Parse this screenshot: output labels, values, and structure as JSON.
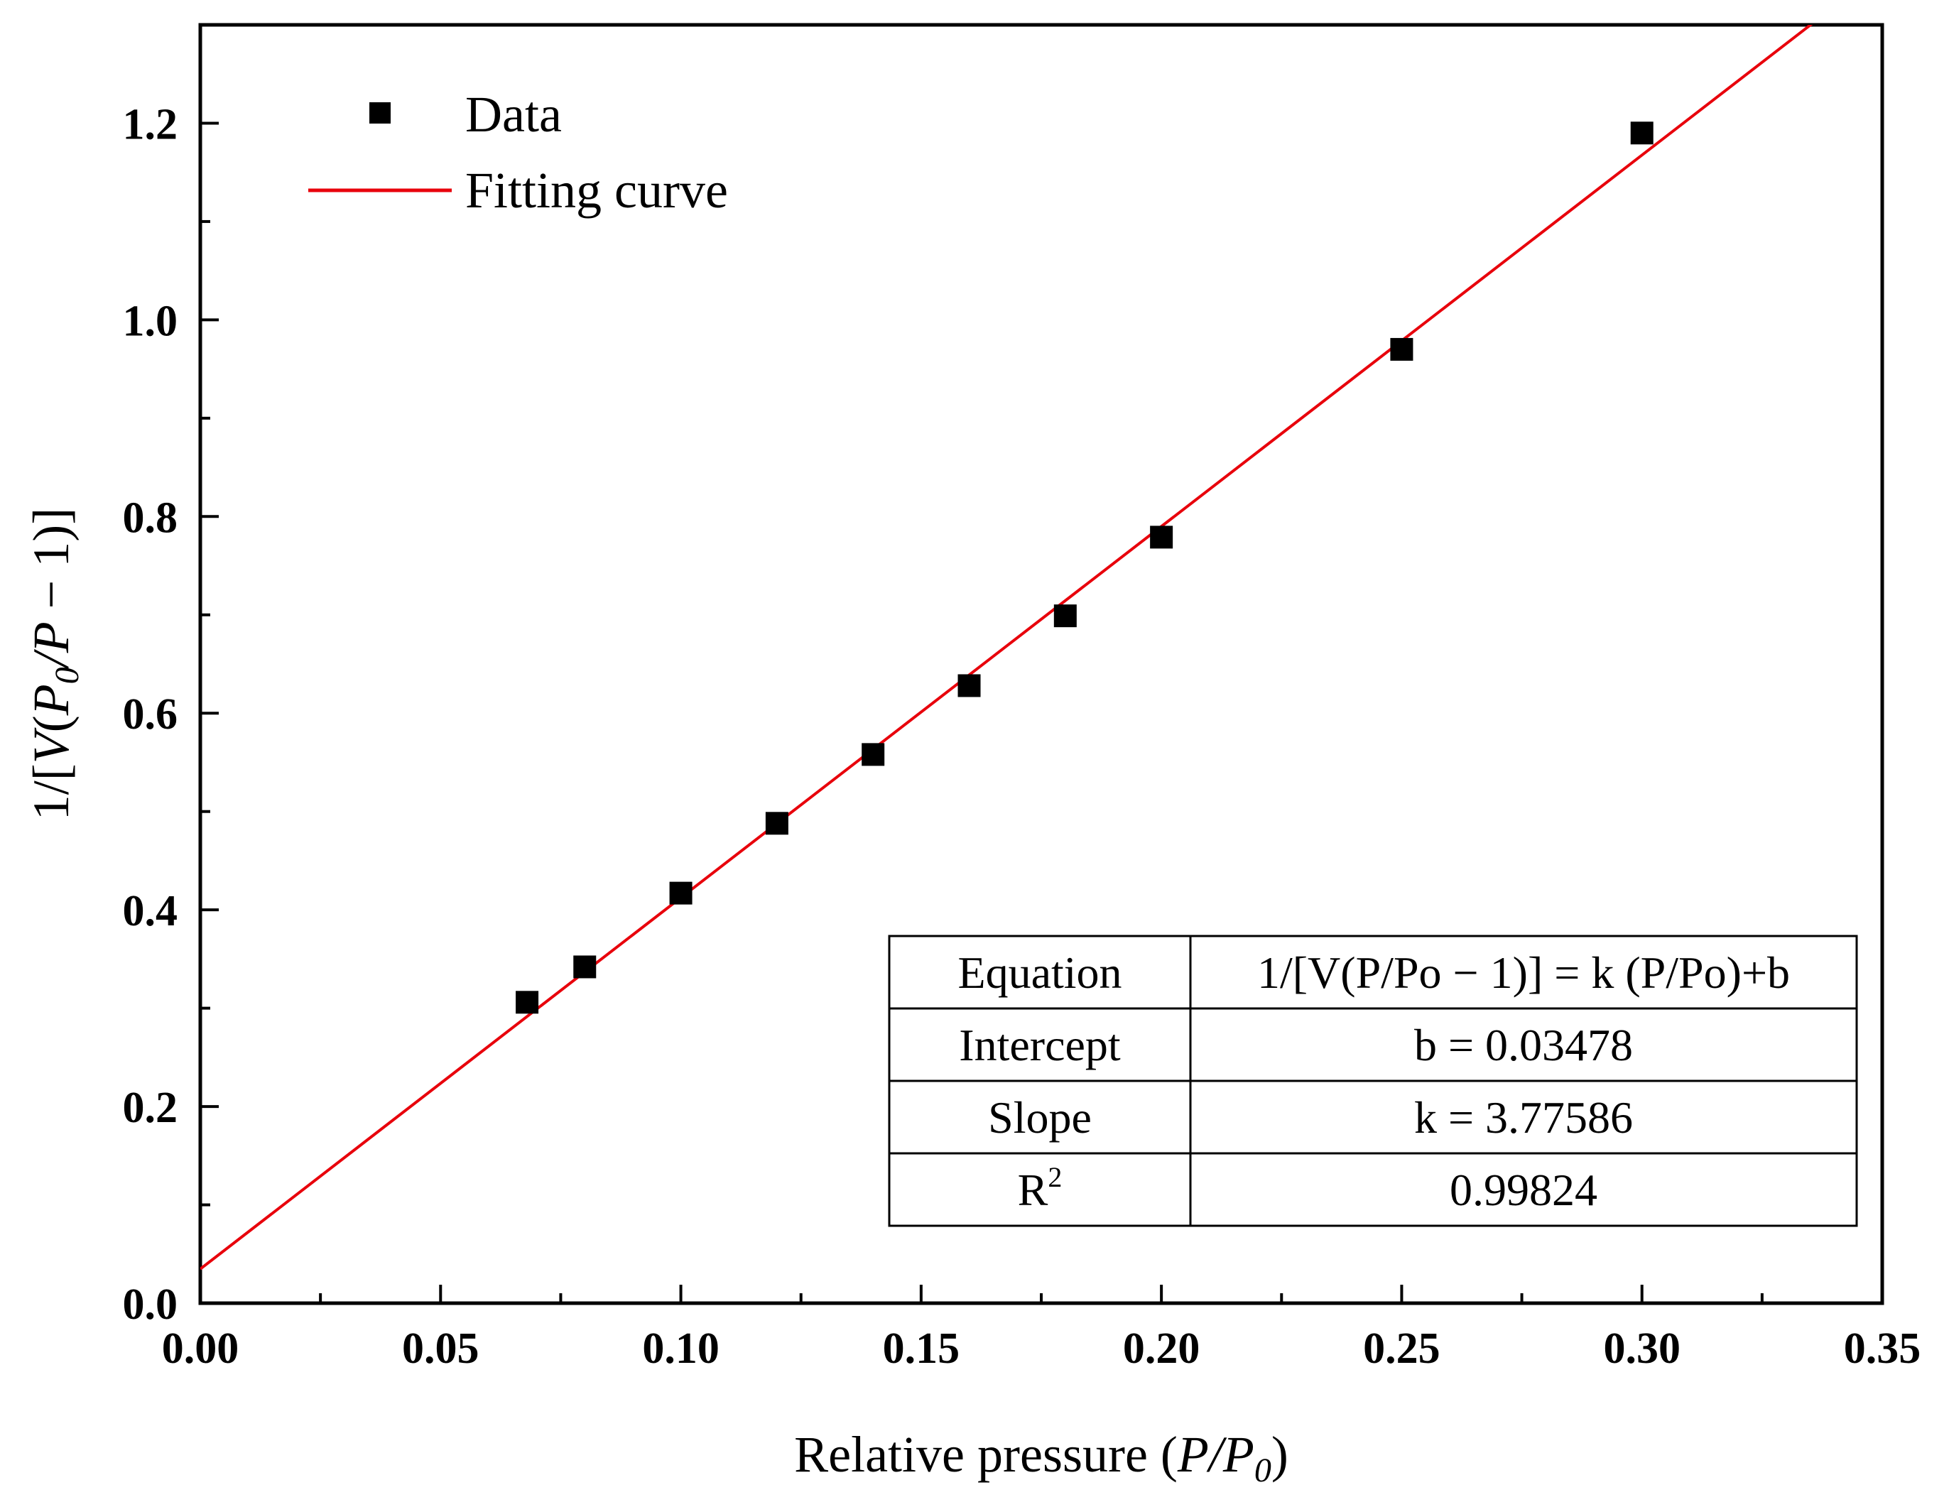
{
  "chart_data": {
    "type": "scatter",
    "xlabel": "Relative pressure (P/P0)",
    "xlabel_parts": {
      "prefix": "Relative pressure (",
      "p": "P",
      "slash": "/",
      "p0": "P",
      "sub0": "0",
      "suffix": ")"
    },
    "ylabel": "1/[V(P0/P − 1)]",
    "ylabel_parts": {
      "prefix": "1/[",
      "v": "V",
      "open": "(",
      "p0": "P",
      "sub0": "0",
      "slash": "/",
      "p": "P",
      "rest": " − 1)]"
    },
    "xlim": [
      0.0,
      0.35
    ],
    "ylim": [
      0.0,
      1.3
    ],
    "xticks": [
      "0.00",
      "0.05",
      "0.10",
      "0.15",
      "0.20",
      "0.25",
      "0.30",
      "0.35"
    ],
    "yticks": [
      "0.0",
      "0.2",
      "0.4",
      "0.6",
      "0.8",
      "1.0",
      "1.2"
    ],
    "series": [
      {
        "name": "Data",
        "kind": "scatter",
        "marker": "square",
        "color": "#000000",
        "x": [
          0.068,
          0.08,
          0.1,
          0.12,
          0.14,
          0.16,
          0.18,
          0.2,
          0.25,
          0.3
        ],
        "y": [
          0.306,
          0.342,
          0.417,
          0.488,
          0.558,
          0.628,
          0.699,
          0.779,
          0.97,
          1.19
        ]
      },
      {
        "name": "Fitting curve",
        "kind": "line",
        "color": "#e8000b",
        "intercept": 0.03478,
        "slope": 3.77586
      }
    ],
    "legend": {
      "position": "top-left",
      "entries": [
        {
          "label": "Data",
          "marker": "square"
        },
        {
          "label": "Fitting curve",
          "marker": "line"
        }
      ]
    },
    "fit_table": {
      "position": "bottom-right",
      "rows": [
        {
          "label": "Equation",
          "value": "1/[V(P/Po − 1)] = k (P/Po)+b"
        },
        {
          "label": "Intercept",
          "value": "b = 0.03478"
        },
        {
          "label": "Slope",
          "value": "k = 3.77586"
        },
        {
          "label": "R",
          "label_sup": "2",
          "value": "0.99824"
        }
      ]
    }
  }
}
